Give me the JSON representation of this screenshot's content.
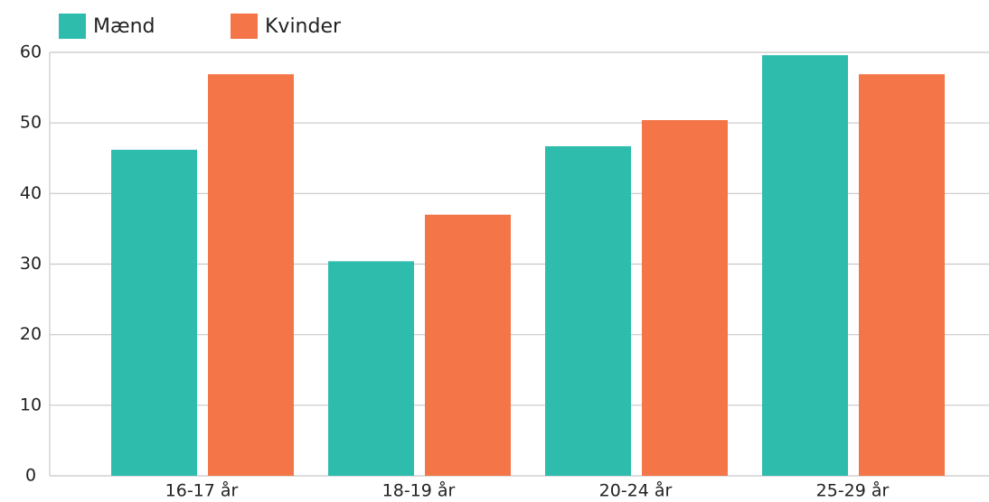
{
  "chart_data": {
    "type": "bar",
    "categories": [
      "16-17 år",
      "18-19 år",
      "20-24 år",
      "25-29 år"
    ],
    "series": [
      {
        "name": "Mænd",
        "color": "#2ebdad",
        "values": [
          46.2,
          30.4,
          46.7,
          59.6
        ]
      },
      {
        "name": "Kvinder",
        "color": "#f47548",
        "values": [
          56.9,
          37.0,
          50.4,
          56.9
        ]
      }
    ],
    "ylim": [
      0,
      60
    ],
    "yticks": [
      0,
      10,
      20,
      30,
      40,
      50,
      60
    ],
    "grid": true,
    "legend": "top-left"
  }
}
